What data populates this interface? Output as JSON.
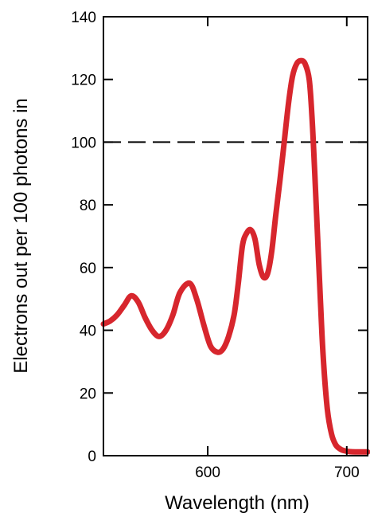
{
  "chart_data": {
    "type": "line",
    "title": "",
    "xlabel": "Wavelength (nm)",
    "ylabel": "Electrons out per 100 photons in",
    "xlim": [
      525,
      715
    ],
    "ylim": [
      0,
      140
    ],
    "xticks": [
      {
        "value": 600,
        "label": "600"
      },
      {
        "value": 700,
        "label": "700"
      }
    ],
    "yticks": [
      {
        "value": 0,
        "label": "0"
      },
      {
        "value": 20,
        "label": "20"
      },
      {
        "value": 40,
        "label": "40"
      },
      {
        "value": 60,
        "label": "60"
      },
      {
        "value": 80,
        "label": "80"
      },
      {
        "value": 100,
        "label": "100"
      },
      {
        "value": 120,
        "label": "120"
      },
      {
        "value": 140,
        "label": "140"
      }
    ],
    "reference_line": {
      "y": 100,
      "style": "dashed",
      "color": "#000000"
    },
    "grid": false,
    "series": [
      {
        "color": "#d7262d",
        "x": [
          525,
          530,
          535,
          540,
          545,
          550,
          555,
          560,
          565,
          570,
          575,
          580,
          587,
          592,
          597,
          602,
          607,
          611,
          615,
          619,
          622,
          625,
          628,
          631,
          634,
          637,
          640,
          643,
          646,
          649,
          652,
          655,
          658,
          661,
          664,
          667,
          670,
          673,
          675,
          677,
          679,
          681,
          683,
          686,
          689,
          692,
          695,
          698,
          702,
          706,
          710,
          715
        ],
        "y": [
          42,
          43,
          45,
          48,
          51,
          49,
          44,
          40,
          38,
          40,
          45,
          52,
          55,
          50,
          42,
          35,
          33,
          34,
          38,
          45,
          55,
          67,
          71,
          72,
          69,
          61,
          57,
          58,
          65,
          77,
          88,
          100,
          112,
          121,
          125,
          126,
          125,
          120,
          108,
          90,
          70,
          50,
          32,
          15,
          7,
          3.5,
          2.2,
          1.6,
          1.3,
          1.2,
          1.2,
          1.2
        ]
      }
    ]
  }
}
